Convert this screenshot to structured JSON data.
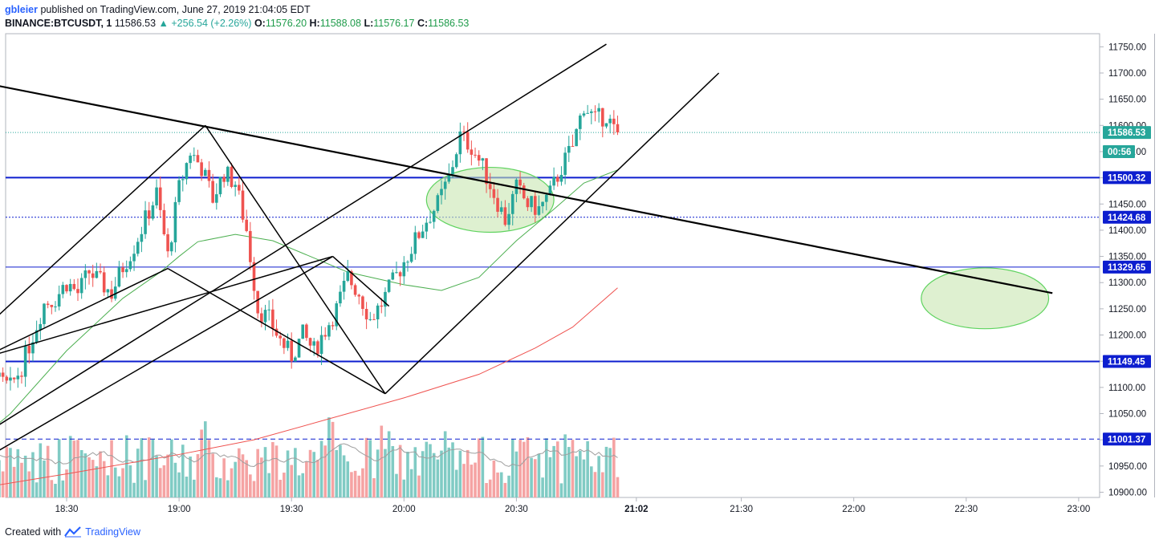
{
  "header": {
    "author": "gbleier",
    "published": "published on TradingView.com, June 27, 2019 21:04:05 EDT",
    "symbol": "BINANCE:BTCUSDT, 1",
    "last": "11586.53",
    "change": "▲ +256.54 (+2.26%)",
    "o_label": "O:",
    "o_value": "11576.20",
    "h_label": "H:",
    "h_value": "11588.08",
    "l_label": "L:",
    "l_value": "11576.17",
    "c_label": "C:",
    "c_value": "11586.53"
  },
  "footer": {
    "created_with": "Created with",
    "brand": "TradingView"
  },
  "colors": {
    "bull": "#26a69a",
    "bear": "#ef5350",
    "bull_volume": "#80cbc4",
    "bear_volume": "#f5a3a3",
    "level_line": "#0d1ecf",
    "ma_fast": "#4caf50",
    "ma_slow": "#ef5350",
    "zone_fill": "#c8e6b0",
    "zone_stroke": "#5fd35f"
  },
  "price_axis": {
    "labels": [
      "11750.00",
      "11700.00",
      "11650.00",
      "11600.00",
      "11550.00",
      "11500.00",
      "11450.00",
      "11400.00",
      "11350.00",
      "11300.00",
      "11250.00",
      "11200.00",
      "11150.00",
      "11100.00",
      "11050.00",
      "11000.00",
      "10950.00",
      "10900.00"
    ],
    "ticks": [
      11750,
      11700,
      11650,
      11600,
      11550,
      11500,
      11450,
      11400,
      11350,
      11300,
      11250,
      11200,
      11150,
      11100,
      11050,
      11000,
      10950,
      10900
    ]
  },
  "time_axis": {
    "labels": [
      "18:30",
      "19:00",
      "19:30",
      "20:00",
      "20:30",
      "21:02",
      "21:30",
      "22:00",
      "22:30",
      "23:00"
    ],
    "minutes": [
      30,
      60,
      90,
      120,
      150,
      182,
      210,
      240,
      270,
      300
    ],
    "current_label_index": 5
  },
  "price_tags": [
    {
      "value": 11586.53,
      "text": "11586.53",
      "kind": "last"
    },
    {
      "value": 11550.0,
      "text": "00:56",
      "kind": "countdown"
    },
    {
      "value": 11500.32,
      "text": "11500.32",
      "kind": "level"
    },
    {
      "value": 11424.68,
      "text": "11424.68",
      "kind": "level"
    },
    {
      "value": 11329.65,
      "text": "11329.65",
      "kind": "level"
    },
    {
      "value": 11149.45,
      "text": "11149.45",
      "kind": "level"
    },
    {
      "value": 11001.37,
      "text": "11001.37",
      "kind": "level"
    }
  ],
  "horizontal_levels": [
    {
      "price": 11500.32,
      "style": "solid",
      "width": 2
    },
    {
      "price": 11424.68,
      "style": "dotted",
      "width": 1
    },
    {
      "price": 11329.65,
      "style": "solid",
      "width": 1
    },
    {
      "price": 11149.45,
      "style": "solid",
      "width": 2
    },
    {
      "price": 11001.37,
      "style": "dashed",
      "width": 1
    }
  ],
  "trendlines": [
    {
      "t1": 0,
      "p1": 11692,
      "t2": 293,
      "p2": 11280,
      "width": 2.2
    },
    {
      "t1": 0,
      "p1": 11160,
      "t2": 67,
      "p2": 11600,
      "width": 1.5
    },
    {
      "t1": 67,
      "p1": 11600,
      "t2": 115,
      "p2": 11088,
      "width": 1.5
    },
    {
      "t1": 115,
      "p1": 11088,
      "t2": 204,
      "p2": 11700,
      "width": 1.5
    },
    {
      "t1": 0,
      "p1": 11130,
      "t2": 57,
      "p2": 11327,
      "width": 1.5
    },
    {
      "t1": 57,
      "p1": 11327,
      "t2": 115,
      "p2": 11088,
      "width": 1.5
    },
    {
      "t1": 0,
      "p1": 10975,
      "t2": 174,
      "p2": 11755,
      "width": 1.5
    },
    {
      "t1": 0,
      "p1": 11140,
      "t2": 101,
      "p2": 11350,
      "width": 1.5
    },
    {
      "t1": 0,
      "p1": 10930,
      "t2": 101,
      "p2": 11350,
      "width": 1.5
    },
    {
      "t1": 101,
      "p1": 11350,
      "t2": 116,
      "p2": 11255,
      "width": 1.5
    }
  ],
  "zones": [
    {
      "t": 143,
      "p": 11458,
      "rt": 17,
      "rp": 62
    },
    {
      "t": 275,
      "p": 11270,
      "rt": 17,
      "rp": 58
    }
  ],
  "chart_data": {
    "type": "candlestick",
    "symbol": "BINANCE:BTCUSDT",
    "interval": "1",
    "candles_note": "1-minute OHLC approximations from 18:18 to 21:02 (t = minutes after 18:00)",
    "anchors": [
      [
        0,
        11020
      ],
      [
        3,
        11080
      ],
      [
        6,
        11150
      ],
      [
        9,
        11190
      ],
      [
        12,
        11110
      ],
      [
        15,
        11100
      ],
      [
        18,
        11140
      ],
      [
        21,
        11200
      ],
      [
        24,
        11260
      ],
      [
        27,
        11270
      ],
      [
        30,
        11300
      ],
      [
        33,
        11280
      ],
      [
        36,
        11320
      ],
      [
        39,
        11300
      ],
      [
        42,
        11280
      ],
      [
        45,
        11330
      ],
      [
        48,
        11370
      ],
      [
        51,
        11420
      ],
      [
        54,
        11470
      ],
      [
        57,
        11350
      ],
      [
        60,
        11480
      ],
      [
        63,
        11550
      ],
      [
        66,
        11520
      ],
      [
        69,
        11460
      ],
      [
        72,
        11510
      ],
      [
        75,
        11490
      ],
      [
        78,
        11400
      ],
      [
        81,
        11250
      ],
      [
        84,
        11230
      ],
      [
        87,
        11190
      ],
      [
        90,
        11160
      ],
      [
        93,
        11200
      ],
      [
        96,
        11170
      ],
      [
        99,
        11210
      ],
      [
        102,
        11250
      ],
      [
        105,
        11310
      ],
      [
        108,
        11280
      ],
      [
        111,
        11230
      ],
      [
        114,
        11260
      ],
      [
        117,
        11300
      ],
      [
        120,
        11340
      ],
      [
        123,
        11380
      ],
      [
        126,
        11420
      ],
      [
        129,
        11450
      ],
      [
        132,
        11500
      ],
      [
        135,
        11580
      ],
      [
        138,
        11560
      ],
      [
        141,
        11520
      ],
      [
        144,
        11470
      ],
      [
        147,
        11420
      ],
      [
        150,
        11480
      ],
      [
        153,
        11450
      ],
      [
        156,
        11440
      ],
      [
        159,
        11470
      ],
      [
        162,
        11520
      ],
      [
        165,
        11560
      ],
      [
        168,
        11640
      ],
      [
        171,
        11610
      ],
      [
        174,
        11620
      ],
      [
        176,
        11590
      ],
      [
        177,
        11586.53
      ]
    ],
    "ylim": [
      10890,
      11775
    ],
    "xlim": [
      0,
      300
    ],
    "ma_fast_points": [
      [
        0,
        10960
      ],
      [
        15,
        11050
      ],
      [
        30,
        11170
      ],
      [
        45,
        11270
      ],
      [
        55,
        11320
      ],
      [
        60,
        11350
      ],
      [
        65,
        11378
      ],
      [
        75,
        11392
      ],
      [
        85,
        11380
      ],
      [
        95,
        11350
      ],
      [
        105,
        11320
      ],
      [
        120,
        11296
      ],
      [
        130,
        11285
      ],
      [
        140,
        11310
      ],
      [
        150,
        11380
      ],
      [
        160,
        11440
      ],
      [
        168,
        11490
      ],
      [
        177,
        11515
      ]
    ],
    "ma_slow_points": [
      [
        0,
        10900
      ],
      [
        30,
        10935
      ],
      [
        60,
        10972
      ],
      [
        80,
        11000
      ],
      [
        100,
        11040
      ],
      [
        120,
        11080
      ],
      [
        140,
        11125
      ],
      [
        155,
        11175
      ],
      [
        165,
        11215
      ],
      [
        177,
        11290
      ]
    ],
    "volume_max": 100
  }
}
